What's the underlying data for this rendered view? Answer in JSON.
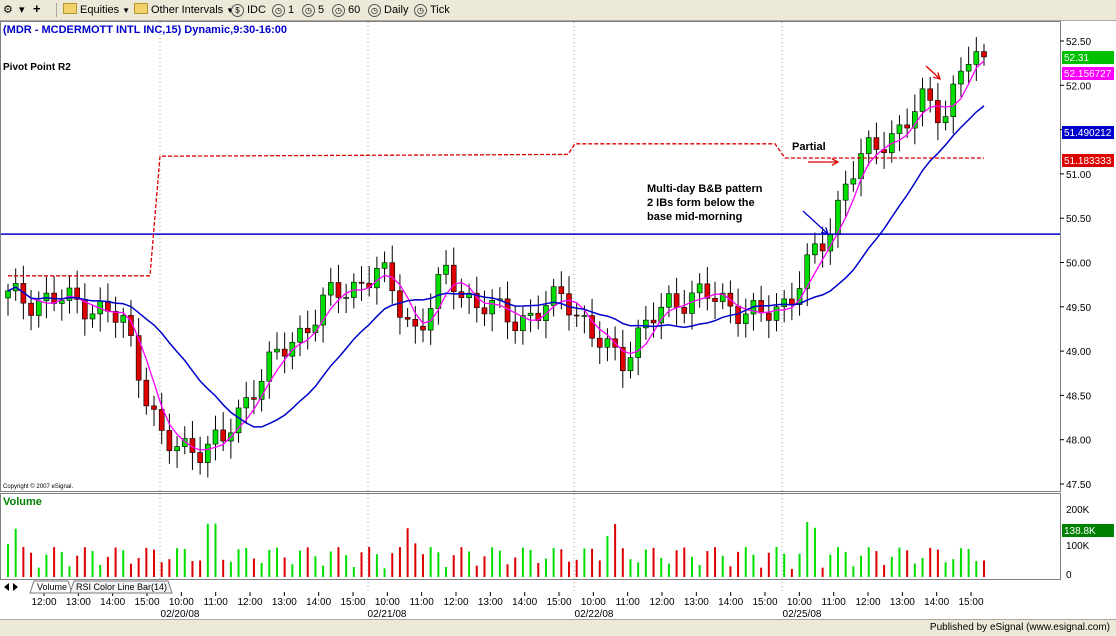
{
  "toolbar": {
    "equities_label": "Equities",
    "other_intervals_label": "Other Intervals",
    "idc_label": "IDC",
    "interval_1": "1",
    "interval_5": "5",
    "interval_60": "60",
    "daily_label": "Daily",
    "tick_label": "Tick"
  },
  "chart": {
    "header": "(MDR - MCDERMOTT INTL INC,15) Dynamic,9:30-16:00",
    "pivot_label": "Pivot Point R2",
    "copyright": "Copyright © 2007 eSignal.",
    "annotations": {
      "partial": "Partial",
      "pattern_line1": "Multi-day B&B pattern",
      "pattern_line2": "2 IBs form below the",
      "pattern_line3": "base mid-morning"
    },
    "price_axis_ticks": [
      "52.50",
      "52.00",
      "51.50",
      "51.00",
      "50.50",
      "50.00",
      "49.50",
      "49.00",
      "48.50",
      "48.00",
      "47.50"
    ],
    "price_tags": [
      {
        "text": "52.31",
        "bg": "#00c000",
        "fg": "#ffffff"
      },
      {
        "text": "52.156727",
        "bg": "#ff00ff",
        "fg": "#ffffff"
      },
      {
        "text": "51.490212",
        "bg": "#0000cc",
        "fg": "#ffffff"
      },
      {
        "text": "51.183333",
        "bg": "#dd0000",
        "fg": "#ffffff"
      }
    ],
    "volume_label": "Volume",
    "volume_axis_ticks": [
      "200K",
      "100K",
      "0"
    ],
    "volume_tag": {
      "text": "138.8K",
      "bg": "#008000",
      "fg": "#ffffff"
    },
    "time_labels": [
      "12:00",
      "13:00",
      "14:00",
      "15:00",
      "10:00",
      "11:00",
      "12:00",
      "13:00",
      "14:00",
      "15:00",
      "10:00",
      "11:00",
      "12:00",
      "13:00",
      "14:00",
      "15:00",
      "10:00",
      "11:00",
      "12:00",
      "13:00",
      "14:00",
      "15:00",
      "10:00",
      "11:00",
      "12:00",
      "13:00",
      "14:00",
      "15:00"
    ],
    "date_labels": [
      "02/20/08",
      "02/21/08",
      "02/22/08",
      "02/25/08"
    ],
    "tabs": [
      "Volume",
      "RSI Color Line Bar(14)"
    ]
  },
  "colors": {
    "up_candle": "#00dd00",
    "down_candle": "#dd0000",
    "ma_fast": "#ff00ff",
    "ma_slow": "#0000cc",
    "pivot": "#dd0000",
    "base_line": "#0000cc"
  },
  "footer": {
    "text": "Published by eSignal (www.esignal.com)"
  }
}
